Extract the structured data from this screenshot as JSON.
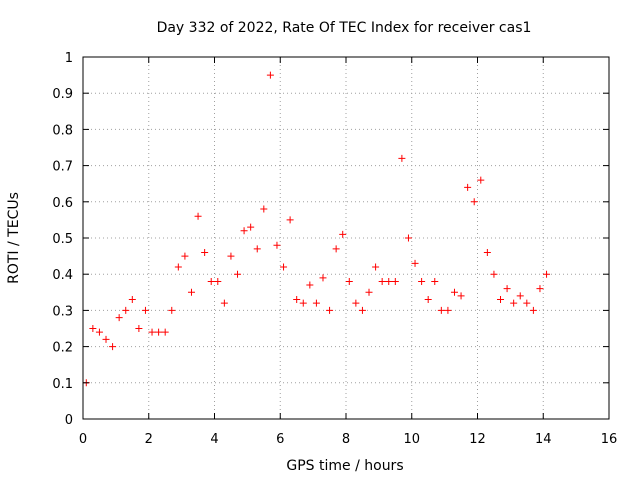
{
  "chart_data": {
    "type": "scatter",
    "title": "Day 332 of 2022, Rate Of TEC Index for receiver cas1",
    "xlabel": "GPS time / hours",
    "ylabel": "ROTI / TECUs",
    "xlim": [
      0,
      16
    ],
    "ylim": [
      0,
      1
    ],
    "xticks": [
      0,
      2,
      4,
      6,
      8,
      10,
      12,
      14,
      16
    ],
    "yticks": [
      0,
      0.1,
      0.2,
      0.3,
      0.4,
      0.5,
      0.6,
      0.7,
      0.8,
      0.9,
      1
    ],
    "grid": true,
    "marker": "+",
    "marker_color": "#ff0000",
    "legend": "none",
    "series": [
      {
        "x": [
          0.1,
          0.3,
          0.5,
          0.7,
          0.9,
          1.1,
          1.3,
          1.5,
          1.7,
          1.9,
          2.1,
          2.3,
          2.5,
          2.7,
          2.9,
          3.1,
          3.3,
          3.5,
          3.7,
          3.9,
          4.1,
          4.3,
          4.5,
          4.7,
          4.9,
          5.1,
          5.3,
          5.5,
          5.7,
          5.9,
          6.1,
          6.3,
          6.5,
          6.7,
          6.9,
          7.1,
          7.3,
          7.5,
          7.7,
          7.9,
          8.1,
          8.3,
          8.5,
          8.7,
          8.9,
          9.1,
          9.3,
          9.5,
          9.7,
          9.9,
          10.1,
          10.3,
          10.5,
          10.7,
          10.9,
          11.1,
          11.3,
          11.5,
          11.7,
          11.9,
          12.1,
          12.3,
          12.5,
          12.7,
          12.9,
          13.1,
          13.3,
          13.5,
          13.7,
          13.9,
          14.1
        ],
        "y": [
          0.1,
          0.25,
          0.24,
          0.22,
          0.2,
          0.28,
          0.3,
          0.33,
          0.25,
          0.3,
          0.24,
          0.24,
          0.24,
          0.3,
          0.42,
          0.45,
          0.35,
          0.56,
          0.46,
          0.38,
          0.38,
          0.32,
          0.45,
          0.4,
          0.52,
          0.53,
          0.47,
          0.58,
          0.95,
          0.48,
          0.42,
          0.55,
          0.33,
          0.32,
          0.37,
          0.32,
          0.39,
          0.3,
          0.47,
          0.51,
          0.38,
          0.32,
          0.3,
          0.35,
          0.42,
          0.38,
          0.38,
          0.38,
          0.72,
          0.5,
          0.43,
          0.38,
          0.33,
          0.38,
          0.3,
          0.3,
          0.35,
          0.34,
          0.64,
          0.6,
          0.66,
          0.46,
          0.4,
          0.33,
          0.36,
          0.32,
          0.34,
          0.32,
          0.3,
          0.36,
          0.4
        ]
      }
    ]
  }
}
